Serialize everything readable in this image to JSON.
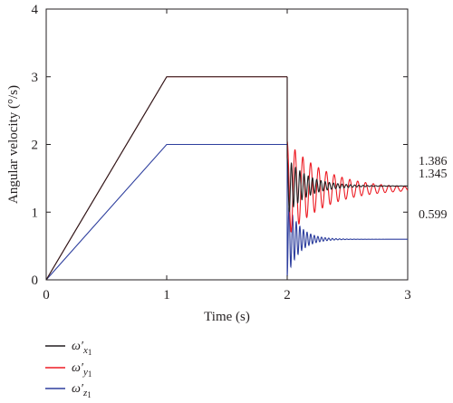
{
  "chart_data": {
    "type": "line",
    "xlabel": "Time (s)",
    "ylabel": "Angular velocity (°/s)",
    "xlim": [
      0,
      3
    ],
    "ylim": [
      0,
      4
    ],
    "x_ticks": [
      "0",
      "1",
      "2",
      "3"
    ],
    "y_ticks": [
      "0",
      "1",
      "2",
      "3",
      "4"
    ],
    "grid": false,
    "legend_position": "bottom-left, below plot",
    "series": [
      {
        "name": "ω′x1",
        "legend": {
          "base": "ω′",
          "sub": "x",
          "subsub": "1"
        },
        "color": "#231f20",
        "segments": [
          {
            "x": [
              0,
              1,
              2
            ],
            "y": [
              0,
              3,
              3
            ]
          },
          {
            "x": [
              2,
              3
            ],
            "y": [
              3,
              1.386
            ],
            "oscillation": {
              "start": 1.8,
              "final": 1.386,
              "decay_s": 0.17,
              "period_s": 0.035
            }
          }
        ],
        "final_value": "1.386"
      },
      {
        "name": "ω′y1",
        "legend": {
          "base": "ω′",
          "sub": "y",
          "subsub": "1"
        },
        "color": "#ed1c24",
        "segments": [
          {
            "x": [
              0,
              1,
              2
            ],
            "y": [
              0,
              3,
              3
            ]
          },
          {
            "x": [
              2,
              3
            ],
            "y": [
              3,
              1.345
            ],
            "oscillation": {
              "start": 2.05,
              "final": 1.345,
              "decay_s": 0.32,
              "period_s": 0.065
            }
          }
        ],
        "final_value": "1.345"
      },
      {
        "name": "ω′z1",
        "legend": {
          "base": "ω′",
          "sub": "z",
          "subsub": "1"
        },
        "color": "#2e3f9e",
        "segments": [
          {
            "x": [
              0,
              1,
              2
            ],
            "y": [
              0,
              2,
              2
            ]
          },
          {
            "x": [
              2,
              3
            ],
            "y": [
              2,
              0.599
            ],
            "oscillation": {
              "start": 0.05,
              "final": 0.599,
              "decay_s": 0.1,
              "period_s": 0.03
            }
          }
        ],
        "final_value": "0.599"
      }
    ]
  }
}
